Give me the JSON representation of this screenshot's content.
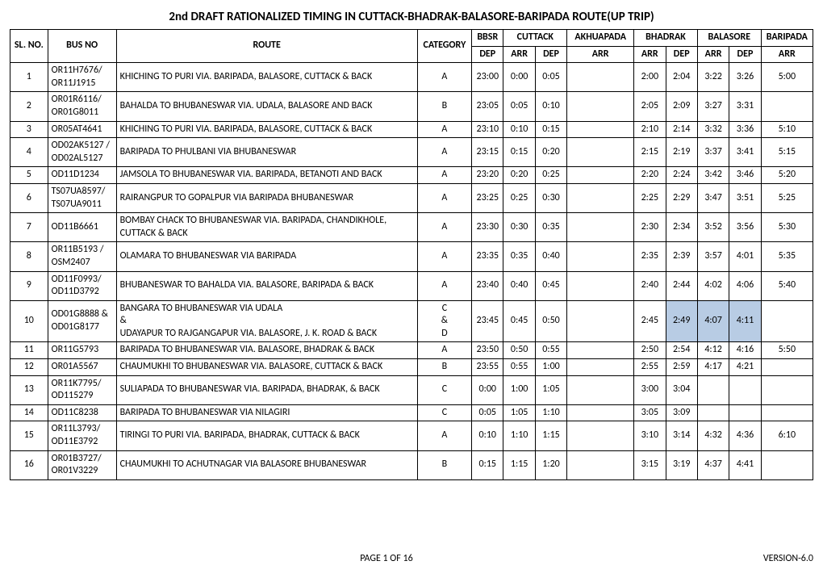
{
  "title": "2nd DRAFT RATIONALIZED TIMING IN CUTTACK-BHADRAK-BALASORE-BARIPADA ROUTE(UP TRIP)",
  "footer_page": "PAGE 1 OF 16",
  "footer_version": "VERSION-6.0",
  "headers": {
    "sl": "SL. NO.",
    "bus": "BUS NO",
    "route": "ROUTE",
    "cat": "CATEGORY",
    "bbsr": "BBSR",
    "cuttack": "CUTTACK",
    "akhuapada": "AKHUAPADA",
    "bhadrak": "BHADRAK",
    "balasore": "BALASORE",
    "baripada": "BARIPADA",
    "dep": "DEP",
    "arr": "ARR"
  },
  "rows": [
    {
      "sl": "1",
      "bus": "OR11H7676/ OR11J1915",
      "route": "KHICHING TO PURI VIA. BARIPADA, BALASORE, CUTTACK & BACK",
      "cat": "A",
      "bbsr_dep": "23:00",
      "cut_arr": "0:00",
      "cut_dep": "0:05",
      "akh_arr": "",
      "bhd_arr": "2:00",
      "bhd_dep": "2:04",
      "bal_arr": "3:22",
      "bal_dep": "3:26",
      "bar_arr": "5:00"
    },
    {
      "sl": "2",
      "bus": "OR01R6116/ OR01G8011",
      "route": "BAHALDA TO BHUBANESWAR VIA. UDALA, BALASORE AND BACK",
      "cat": "B",
      "bbsr_dep": "23:05",
      "cut_arr": "0:05",
      "cut_dep": "0:10",
      "akh_arr": "",
      "bhd_arr": "2:05",
      "bhd_dep": "2:09",
      "bal_arr": "3:27",
      "bal_dep": "3:31",
      "bar_arr": ""
    },
    {
      "sl": "3",
      "bus": "OR05AT4641",
      "route": "KHICHING TO PURI VIA. BARIPADA, BALASORE, CUTTACK & BACK",
      "cat": "A",
      "bbsr_dep": "23:10",
      "cut_arr": "0:10",
      "cut_dep": "0:15",
      "akh_arr": "",
      "bhd_arr": "2:10",
      "bhd_dep": "2:14",
      "bal_arr": "3:32",
      "bal_dep": "3:36",
      "bar_arr": "5:10"
    },
    {
      "sl": "4",
      "bus": "OD02AK5127 / OD02AL5127",
      "route": "BARIPADA TO PHULBANI VIA BHUBANESWAR",
      "cat": "A",
      "bbsr_dep": "23:15",
      "cut_arr": "0:15",
      "cut_dep": "0:20",
      "akh_arr": "",
      "bhd_arr": "2:15",
      "bhd_dep": "2:19",
      "bal_arr": "3:37",
      "bal_dep": "3:41",
      "bar_arr": "5:15"
    },
    {
      "sl": "5",
      "bus": "OD11D1234",
      "route": "JAMSOLA TO BHUBANESWAR VIA. BARIPADA, BETANOTI AND BACK",
      "cat": "A",
      "bbsr_dep": "23:20",
      "cut_arr": "0:20",
      "cut_dep": "0:25",
      "akh_arr": "",
      "bhd_arr": "2:20",
      "bhd_dep": "2:24",
      "bal_arr": "3:42",
      "bal_dep": "3:46",
      "bar_arr": "5:20"
    },
    {
      "sl": "6",
      "bus": "TS07UA8597/ TS07UA9011",
      "route": "RAIRANGPUR TO GOPALPUR  VIA BARIPADA BHUBANESWAR",
      "cat": "A",
      "bbsr_dep": "23:25",
      "cut_arr": "0:25",
      "cut_dep": "0:30",
      "akh_arr": "",
      "bhd_arr": "2:25",
      "bhd_dep": "2:29",
      "bal_arr": "3:47",
      "bal_dep": "3:51",
      "bar_arr": "5:25"
    },
    {
      "sl": "7",
      "bus": "OD11B6661",
      "route": "BOMBAY CHACK TO BHUBANESWAR VIA. BARIPADA, CHANDIKHOLE, CUTTACK & BACK",
      "cat": "A",
      "bbsr_dep": "23:30",
      "cut_arr": "0:30",
      "cut_dep": "0:35",
      "akh_arr": "",
      "bhd_arr": "2:30",
      "bhd_dep": "2:34",
      "bal_arr": "3:52",
      "bal_dep": "3:56",
      "bar_arr": "5:30"
    },
    {
      "sl": "8",
      "bus": "OR11B5193 / OSM2407",
      "route": "OLAMARA TO BHUBANESWAR VIA BARIPADA",
      "cat": "A",
      "bbsr_dep": "23:35",
      "cut_arr": "0:35",
      "cut_dep": "0:40",
      "akh_arr": "",
      "bhd_arr": "2:35",
      "bhd_dep": "2:39",
      "bal_arr": "3:57",
      "bal_dep": "4:01",
      "bar_arr": "5:35"
    },
    {
      "sl": "9",
      "bus": "OD11F0993/ OD11D3792",
      "route": "BHUBANESWAR TO BAHALDA VIA. BALASORE, BARIPADA & BACK",
      "cat": "A",
      "bbsr_dep": "23:40",
      "cut_arr": "0:40",
      "cut_dep": "0:45",
      "akh_arr": "",
      "bhd_arr": "2:40",
      "bhd_dep": "2:44",
      "bal_arr": "4:02",
      "bal_dep": "4:06",
      "bar_arr": "5:40"
    },
    {
      "sl": "10",
      "bus": "OD01G8888 & OD01G8177",
      "route": "BANGARA TO BHUBANESWAR VIA UDALA\n&\nUDAYAPUR TO RAJGANGAPUR VIA. BALASORE, J. K. ROAD & BACK",
      "cat": "C\n&\nD",
      "bbsr_dep": "23:45",
      "cut_arr": "0:45",
      "cut_dep": "0:50",
      "akh_arr": "",
      "bhd_arr": "2:45",
      "bhd_dep": "2:49",
      "bal_arr": "4:07",
      "bal_dep": "4:11",
      "bar_arr": "",
      "hl": [
        "bhd_dep",
        "bal_arr",
        "bal_dep"
      ]
    },
    {
      "sl": "11",
      "bus": "OR11G5793",
      "route": "BARIPADA TO BHUBANESWAR  VIA. BALASORE, BHADRAK & BACK",
      "cat": "A",
      "bbsr_dep": "23:50",
      "cut_arr": "0:50",
      "cut_dep": "0:55",
      "akh_arr": "",
      "bhd_arr": "2:50",
      "bhd_dep": "2:54",
      "bal_arr": "4:12",
      "bal_dep": "4:16",
      "bar_arr": "5:50"
    },
    {
      "sl": "12",
      "bus": "OR01A5567",
      "route": "CHAUMUKHI TO BHUBANESWAR VIA. BALASORE, CUTTACK & BACK",
      "cat": "B",
      "bbsr_dep": "23:55",
      "cut_arr": "0:55",
      "cut_dep": "1:00",
      "akh_arr": "",
      "bhd_arr": "2:55",
      "bhd_dep": "2:59",
      "bal_arr": "4:17",
      "bal_dep": "4:21",
      "bar_arr": ""
    },
    {
      "sl": "13",
      "bus": "OR11K7795/ OD115279",
      "route": "SULIAPADA TO BHUBANESWAR VIA. BARIPADA, BHADRAK, & BACK",
      "cat": "C",
      "bbsr_dep": "0:00",
      "cut_arr": "1:00",
      "cut_dep": "1:05",
      "akh_arr": "",
      "bhd_arr": "3:00",
      "bhd_dep": "3:04",
      "bal_arr": "",
      "bal_dep": "",
      "bar_arr": ""
    },
    {
      "sl": "14",
      "bus": "OD11C8238",
      "route": "BARIPADA TO BHUBANESWAR VIA NILAGIRI",
      "cat": "C",
      "bbsr_dep": "0:05",
      "cut_arr": "1:05",
      "cut_dep": "1:10",
      "akh_arr": "",
      "bhd_arr": "3:05",
      "bhd_dep": "3:09",
      "bal_arr": "",
      "bal_dep": "",
      "bar_arr": ""
    },
    {
      "sl": "15",
      "bus": "OR11L3793/ OD11E3792",
      "route": "TIRINGI TO PURI VIA. BARIPADA, BHADRAK, CUTTACK & BACK",
      "cat": "A",
      "bbsr_dep": "0:10",
      "cut_arr": "1:10",
      "cut_dep": "1:15",
      "akh_arr": "",
      "bhd_arr": "3:10",
      "bhd_dep": "3:14",
      "bal_arr": "4:32",
      "bal_dep": "4:36",
      "bar_arr": "6:10"
    },
    {
      "sl": "16",
      "bus": "OR01B3727/ OR01V3229",
      "route": "CHAUMUKHI TO ACHUTNAGAR VIA BALASORE BHUBANESWAR",
      "cat": "B",
      "bbsr_dep": "0:15",
      "cut_arr": "1:15",
      "cut_dep": "1:20",
      "akh_arr": "",
      "bhd_arr": "3:15",
      "bhd_dep": "3:19",
      "bal_arr": "4:37",
      "bal_dep": "4:41",
      "bar_arr": ""
    }
  ]
}
